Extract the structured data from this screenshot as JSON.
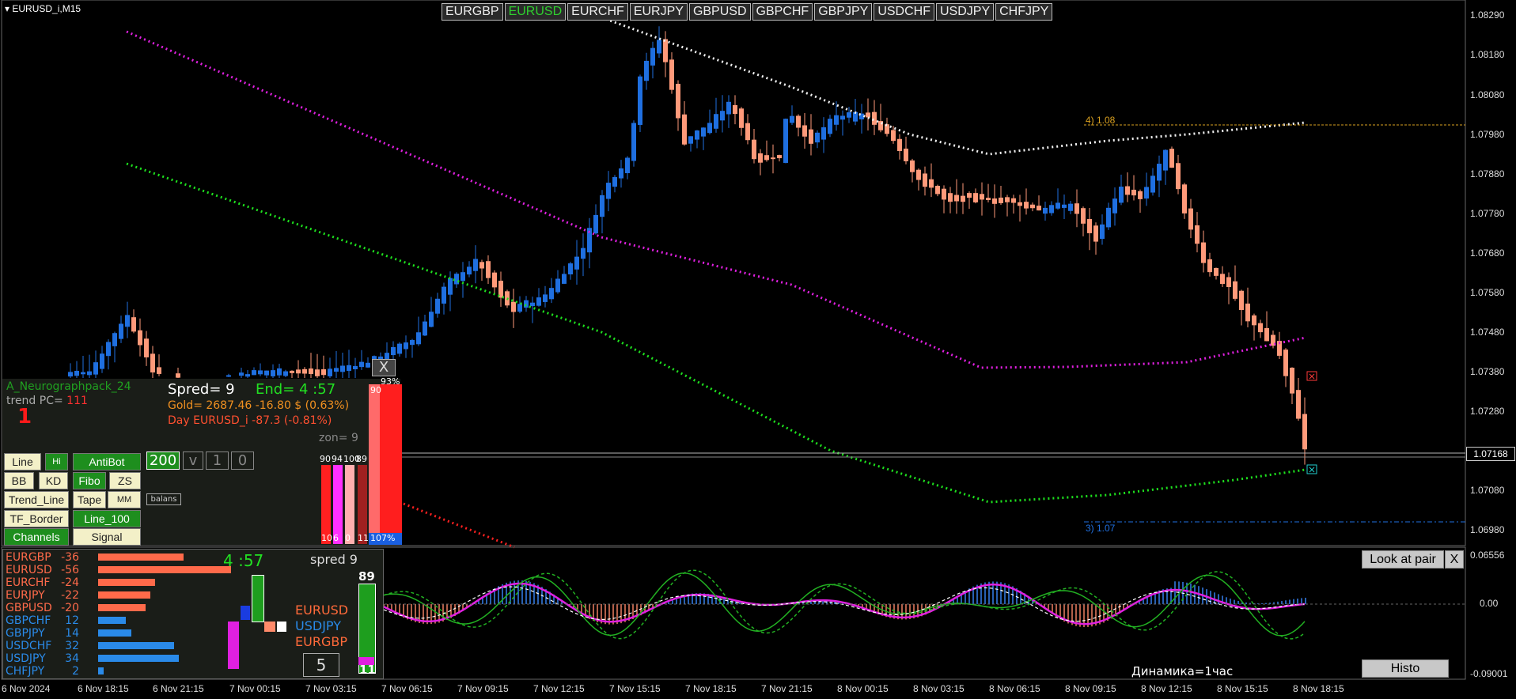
{
  "window_title": "EURUSD_i,M15",
  "symbol_tabs": [
    "EURGBP",
    "EURUSD",
    "EURCHF",
    "EURJPY",
    "GBPUSD",
    "GBPCHF",
    "GBPJPY",
    "USDCHF",
    "USDJPY",
    "CHFJPY"
  ],
  "active_symbol": "EURUSD",
  "price_axis": [
    "1.08290",
    "1.08180",
    "1.08080",
    "1.07980",
    "1.07880",
    "1.07780",
    "1.07680",
    "1.07580",
    "1.07480",
    "1.07380",
    "1.07280",
    "1.07168",
    "1.07080",
    "1.06980"
  ],
  "current_price": "1.07168",
  "osc_axis": [
    "0.06556",
    "0.00",
    "-0.09001"
  ],
  "time_axis": [
    "6 Nov 2024",
    "6 Nov 18:15",
    "6 Nov 21:15",
    "7 Nov 00:15",
    "7 Nov 03:15",
    "7 Nov 06:15",
    "7 Nov 09:15",
    "7 Nov 12:15",
    "7 Nov 15:15",
    "7 Nov 18:15",
    "7 Nov 21:15",
    "8 Nov 00:15",
    "8 Nov 03:15",
    "8 Nov 06:15",
    "8 Nov 09:15",
    "8 Nov 12:15",
    "8 Nov 15:15",
    "8 Nov 18:15"
  ],
  "fibo_labels": {
    "upper": "4)  1.08",
    "lower": "3)  1.07"
  },
  "info_panel": {
    "indicator_name": "A_Neurographpack_24",
    "trend_label": "trend PC=",
    "trend_value": "111",
    "trend_big": "1",
    "spread": "Spred= 9",
    "end": "End= 4 :57",
    "gold": "Gold= 2687.46 -16.80 $ (0.63%)",
    "day": "Day EURUSD_i   -87.3 (-0.81%)",
    "zon": "zon= 9",
    "close_x": "X",
    "pct_93": "93%",
    "bar_top_90": "90",
    "mini_bar_tops": [
      "90",
      "94",
      "100",
      "89"
    ],
    "mini_bar_bottoms": [
      "10",
      "6",
      "0",
      "11"
    ],
    "bottom_107": "107%"
  },
  "buttons": {
    "line": "Line",
    "hi": "Hi",
    "antibot": "AntiBot",
    "n200": "200",
    "v": "v",
    "n1": "1",
    "n0": "0",
    "bb": "BB",
    "kd": "KD",
    "fibo": "Fibo",
    "zs": "ZS",
    "trend_line": "Trend_Line",
    "tape": "Tape",
    "mm": "MM",
    "balans": "balans",
    "tf_border": "TF_Border",
    "line_100": "Line_100",
    "channels": "Channels",
    "signal": "Signal"
  },
  "strength_panel": {
    "pairs": [
      {
        "name": "EURGBP",
        "value": "-36",
        "neg": true,
        "pct": 0.64
      },
      {
        "name": "EURUSD",
        "value": "-56",
        "neg": true,
        "pct": 1.0
      },
      {
        "name": "EURCHF",
        "value": "-24",
        "neg": true,
        "pct": 0.43
      },
      {
        "name": "EURJPY",
        "value": "-22",
        "neg": true,
        "pct": 0.39
      },
      {
        "name": "GBPUSD",
        "value": "-20",
        "neg": true,
        "pct": 0.36
      },
      {
        "name": "GBPCHF",
        "value": "12",
        "neg": false,
        "pct": 0.21
      },
      {
        "name": "GBPJPY",
        "value": "14",
        "neg": false,
        "pct": 0.25
      },
      {
        "name": "USDCHF",
        "value": "32",
        "neg": false,
        "pct": 0.57
      },
      {
        "name": "USDJPY",
        "value": "34",
        "neg": false,
        "pct": 0.61
      },
      {
        "name": "CHFJPY",
        "value": "2",
        "neg": false,
        "pct": 0.04
      }
    ],
    "timer": "4 :57",
    "spread": "spred 9",
    "top_three": [
      "EURUSD",
      "USDJPY",
      "EURGBP"
    ],
    "box_value": "5",
    "gauge_top": "89",
    "gauge_bottom": "11"
  },
  "osc_panel": {
    "look_at_pair": "Look at pair",
    "close_x": "X",
    "histo": "Histo",
    "dynamics": "Динамика=1час"
  },
  "colors": {
    "bull": "#1f6fe0",
    "bear": "#ff9a7a",
    "magenta": "#e020e0",
    "green": "#1ee01e",
    "white": "#f0f0f0",
    "fibo": "#d9a020",
    "panel_bg": "#1a1d18"
  }
}
